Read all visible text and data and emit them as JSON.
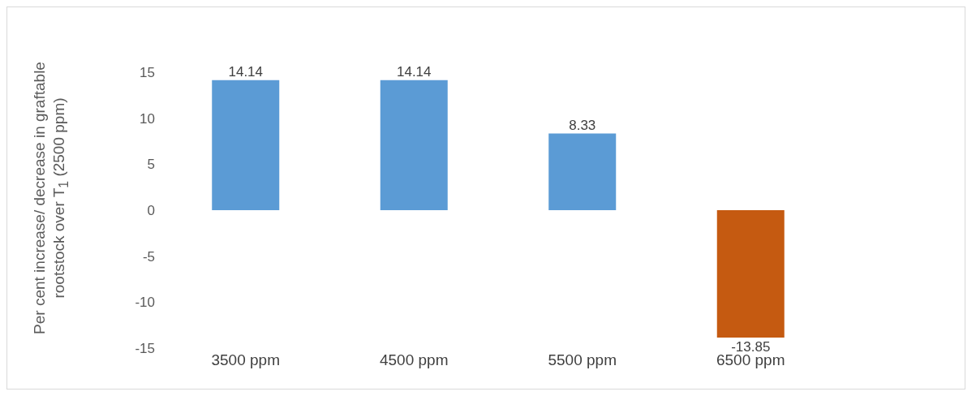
{
  "chart_data": {
    "type": "bar",
    "ylabel": "Per cent increase/ decrease in graftable rootstock over T$_{1}$ (2500 ppm)",
    "categories": [
      "3500 ppm",
      "4500 ppm",
      "5500 ppm",
      "6500 ppm"
    ],
    "values": [
      14.14,
      14.14,
      8.33,
      -13.85
    ],
    "colors": [
      "#5b9bd5",
      "#5b9bd5",
      "#5b9bd5",
      "#c55a11"
    ],
    "ylim": [
      -15,
      15
    ],
    "yticks": [
      -15,
      -10,
      -5,
      0,
      5,
      10,
      15
    ],
    "data_labels": true
  }
}
